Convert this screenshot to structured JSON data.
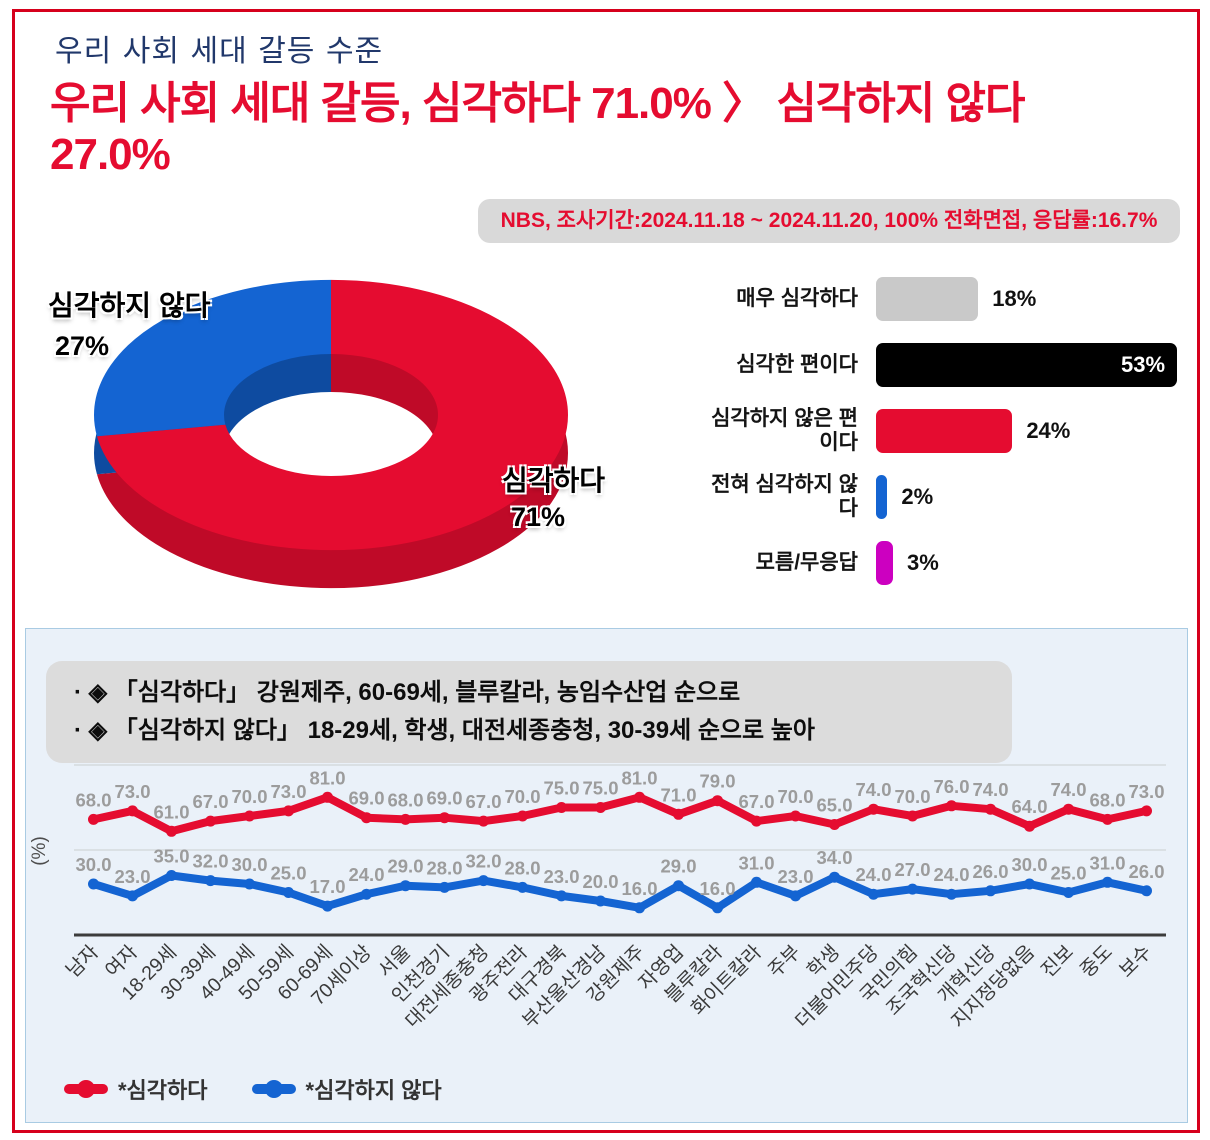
{
  "header": {
    "kicker": "우리 사회 세대 갈등 수준",
    "headline": "우리 사회 세대 갈등, 심각하다 71.0% 〉 심각하지 않다 27.0%",
    "badge": "NBS, 조사기간:2024.11.18 ~ 2024.11.20, 100% 전화면접, 응답률:16.7%"
  },
  "insights": {
    "line1": "· ◈ 「심각하다」 강원제주, 60-69세, 블루칼라, 농임수산업 순으로",
    "line2": "· ◈ 「심각하지 않다」 18-29세, 학생, 대전세종충청, 30-39세 순으로 높아"
  },
  "colors": {
    "red": "#e50c30",
    "red_depth": "#bf0a28",
    "blue": "#1464d2",
    "blue_depth": "#0e4ba0",
    "gray_bar": "#c9c9c9",
    "black_bar": "#000000",
    "magenta_bar": "#cc00c0",
    "frame_red": "#d6001c",
    "value_label_gray": "#9c9c9c"
  },
  "chart_data": [
    {
      "type": "pie",
      "title": "우리 사회 세대 갈등 수준 (donut)",
      "slices": [
        {
          "label": "심각하다",
          "value": 71,
          "color": "#e50c30"
        },
        {
          "label": "심각하지 않다",
          "value": 27,
          "color": "#1464d2"
        }
      ],
      "depth_colors": [
        "#bf0a28",
        "#0e4ba0"
      ],
      "display": {
        "serious_label": "심각하다",
        "serious_value": "71%",
        "not_serious_label": "심각하지 않다",
        "not_serious_value": "27%"
      }
    },
    {
      "type": "bar",
      "orientation": "horizontal",
      "xlim": [
        0,
        55
      ],
      "rows": [
        {
          "label": "매우 심각하다",
          "value": 18,
          "display": "18%",
          "color": "#c9c9c9",
          "value_inside": false
        },
        {
          "label": "심각한 편이다",
          "value": 53,
          "display": "53%",
          "color": "#000000",
          "value_inside": true
        },
        {
          "label": "심각하지 않은 편이다",
          "value": 24,
          "display": "24%",
          "color": "#e50c30",
          "value_inside": false
        },
        {
          "label": "전혀 심각하지 않다",
          "value": 2,
          "display": "2%",
          "color": "#1464d2",
          "value_inside": false
        },
        {
          "label": "모름/무응답",
          "value": 3,
          "display": "3%",
          "color": "#cc00c0",
          "value_inside": false
        }
      ]
    },
    {
      "type": "line",
      "ylabel": "(%)",
      "ylim": [
        0,
        100
      ],
      "gridlines": [
        0,
        50,
        100
      ],
      "categories": [
        "남자",
        "여자",
        "18-29세",
        "30-39세",
        "40-49세",
        "50-59세",
        "60-69세",
        "70세이상",
        "서울",
        "인천경기",
        "대전세종충청",
        "광주전라",
        "대구경북",
        "부산울산경남",
        "강원제주",
        "자영업",
        "블루칼라",
        "화이트칼라",
        "주부",
        "학생",
        "더불어민주당",
        "국민의힘",
        "조국혁신당",
        "개혁신당",
        "지지정당없음",
        "진보",
        "중도",
        "보수"
      ],
      "series": [
        {
          "name": "*심각하다",
          "color": "#e50c30",
          "values": [
            68,
            73,
            61,
            67,
            70,
            73,
            81,
            69,
            68,
            69,
            67,
            70,
            75,
            75,
            81,
            71,
            79,
            67,
            70,
            65,
            74,
            70,
            76,
            74,
            64,
            74,
            68,
            73
          ]
        },
        {
          "name": "*심각하지 않다",
          "color": "#1464d2",
          "values": [
            30,
            23,
            35,
            32,
            30,
            25,
            17,
            24,
            29,
            28,
            32,
            28,
            23,
            20,
            16,
            29,
            16,
            31,
            23,
            34,
            24,
            27,
            24,
            26,
            30,
            25,
            31,
            26
          ]
        }
      ]
    }
  ]
}
